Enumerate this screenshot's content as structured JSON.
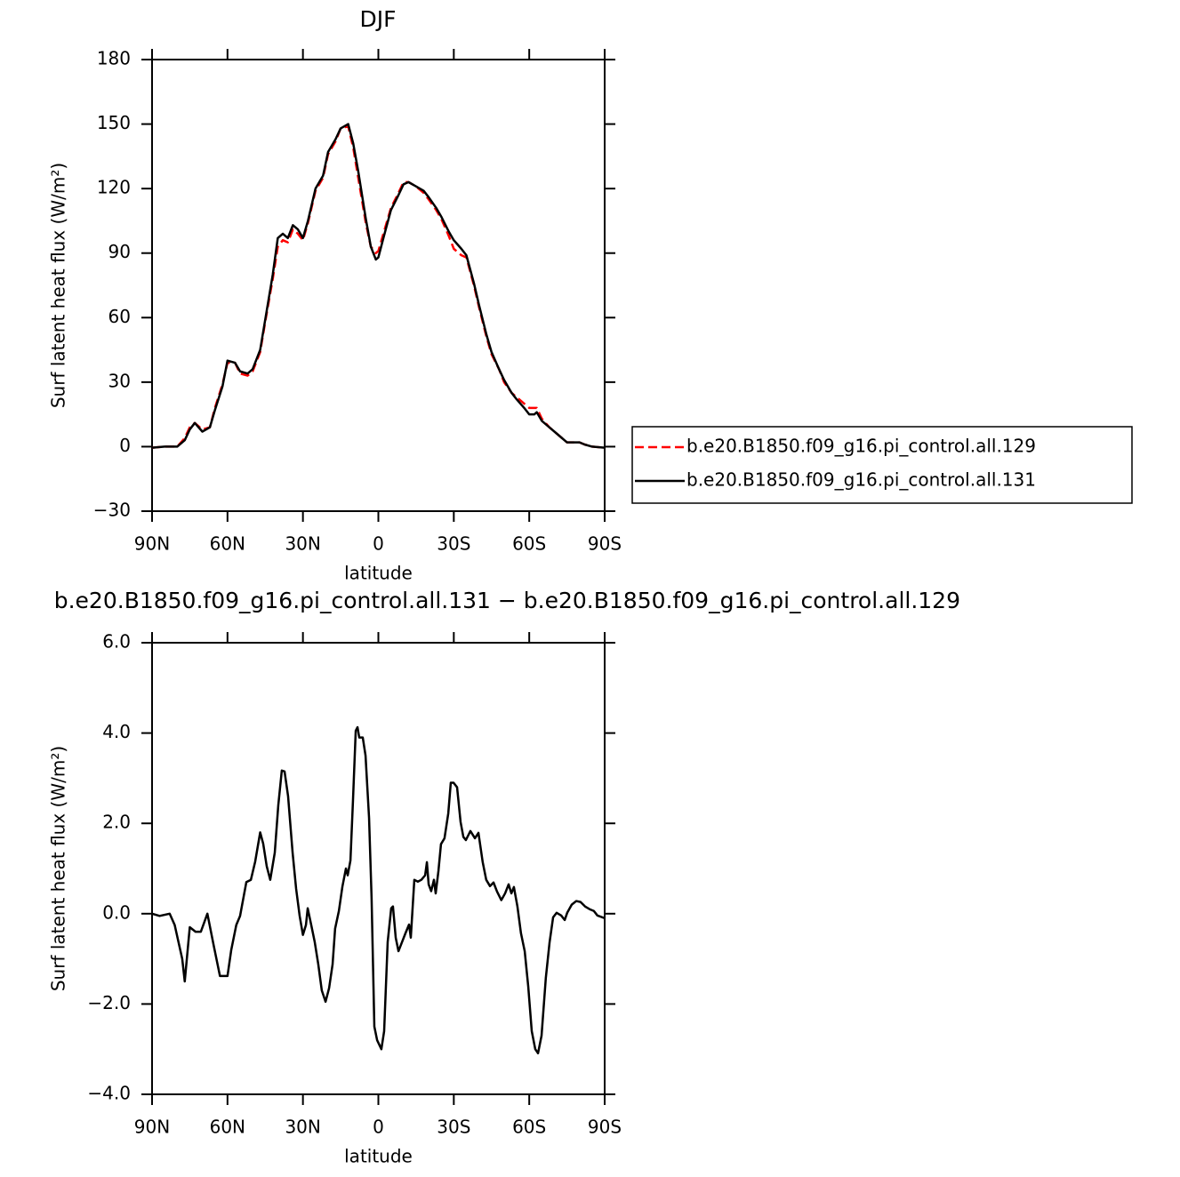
{
  "chart_data": [
    {
      "type": "line",
      "title": "DJF",
      "xlabel": "latitude",
      "ylabel": "Surf latent heat flux (W/m²)",
      "xlim": [
        90,
        -90
      ],
      "xticks": [
        {
          "value": 90,
          "label": "90N"
        },
        {
          "value": 60,
          "label": "60N"
        },
        {
          "value": 30,
          "label": "30N"
        },
        0,
        {
          "value": -30,
          "label": "30S"
        },
        {
          "value": -60,
          "label": "60S"
        },
        {
          "value": -90,
          "label": "90S"
        }
      ],
      "ylim": [
        -30,
        180
      ],
      "yticks": [
        {
          "value": -30,
          "label": "−30"
        },
        0,
        30,
        60,
        90,
        120,
        150,
        180
      ],
      "legend": "right",
      "x": [
        90,
        85,
        80,
        77,
        75,
        73,
        70,
        67,
        65,
        62,
        60,
        57,
        55,
        52,
        50,
        47,
        45,
        42,
        40,
        38,
        36,
        34,
        32,
        30,
        28,
        25,
        22,
        20,
        17,
        15,
        12,
        10,
        8,
        5,
        3,
        1,
        0,
        -2,
        -5,
        -8,
        -10,
        -12,
        -15,
        -18,
        -20,
        -23,
        -25,
        -28,
        -30,
        -33,
        -35,
        -38,
        -40,
        -43,
        -45,
        -48,
        -50,
        -53,
        -55,
        -58,
        -60,
        -62,
        -63,
        -65,
        -68,
        -70,
        -73,
        -75,
        -78,
        -80,
        -82,
        -85,
        -90
      ],
      "series": [
        {
          "name": "b.e20.B1850.f09_g16.pi_control.all.129",
          "color": "#ff0000",
          "linestyle": "dashed",
          "values": [
            -0.5,
            0,
            0,
            4,
            9,
            11,
            8,
            9,
            18,
            29,
            39,
            39,
            34,
            33,
            35,
            44,
            58,
            78,
            93,
            96,
            95,
            101,
            99,
            96,
            104,
            119,
            125,
            136,
            142,
            148,
            149,
            139,
            125,
            104,
            93,
            90,
            91,
            99,
            111,
            118,
            123,
            123,
            121,
            118,
            115,
            110,
            106,
            98,
            92,
            89,
            88,
            75,
            65,
            51,
            43,
            36,
            30,
            25,
            23,
            20,
            18,
            18,
            18,
            13,
            9,
            7,
            4,
            2,
            2,
            2,
            1,
            0,
            -0.5
          ]
        },
        {
          "name": "b.e20.B1850.f09_g16.pi_control.all.131",
          "color": "#000000",
          "linestyle": "solid",
          "values": [
            -0.5,
            0,
            0,
            3,
            8,
            11,
            7,
            9,
            17,
            28,
            40,
            39,
            35,
            34,
            36,
            45,
            59,
            80,
            97,
            99,
            97,
            103,
            101,
            97,
            105,
            120,
            126,
            137,
            143,
            148,
            150,
            141,
            128,
            106,
            93,
            87,
            88,
            97,
            110,
            117,
            122,
            123,
            121,
            119,
            116,
            111,
            107,
            100,
            96,
            92,
            89,
            76,
            66,
            52,
            44,
            36,
            31,
            25,
            22,
            18,
            15,
            15,
            16,
            12,
            9,
            7,
            4,
            2,
            2,
            2,
            1,
            0,
            -0.5
          ]
        }
      ]
    },
    {
      "type": "line",
      "title": "b.e20.B1850.f09_g16.pi_control.all.131 − b.e20.B1850.f09_g16.pi_control.all.129",
      "xlabel": "latitude",
      "ylabel": "Surf latent heat flux (W/m²)",
      "xlim": [
        90,
        -90
      ],
      "xticks": [
        {
          "value": 90,
          "label": "90N"
        },
        {
          "value": 60,
          "label": "60N"
        },
        {
          "value": 30,
          "label": "30N"
        },
        0,
        {
          "value": -30,
          "label": "30S"
        },
        {
          "value": -60,
          "label": "60S"
        },
        {
          "value": -90,
          "label": "90S"
        }
      ],
      "ylim": [
        -4,
        6
      ],
      "yticks": [
        {
          "value": -4,
          "label": "−4.0"
        },
        {
          "value": -2,
          "label": "−2.0"
        },
        {
          "value": 0,
          "label": "0.0"
        },
        {
          "value": 2,
          "label": "2.0"
        },
        {
          "value": 4,
          "label": "4.0"
        },
        {
          "value": 6,
          "label": "6.0"
        }
      ],
      "x": [
        90,
        87,
        83,
        81,
        78,
        77,
        75,
        72.7,
        70.6,
        68,
        65.5,
        63,
        60,
        58.5,
        56.5,
        55,
        52.5,
        50.7,
        49,
        47,
        45.8,
        44.4,
        43,
        41.2,
        39.8,
        38.4,
        37.3,
        35.9,
        34.1,
        32.7,
        31.3,
        30,
        28.8,
        28.1,
        26.7,
        25.3,
        23.9,
        22.5,
        21,
        19.6,
        18.2,
        17.2,
        15.7,
        14.3,
        12.9,
        12.2,
        11.1,
        10.1,
        9,
        8.3,
        7.6,
        6.2,
        5.1,
        3.7,
        2.7,
        1.6,
        0.5,
        -1.2,
        -2.3,
        -3.7,
        -5.1,
        -5.8,
        -6.9,
        -8,
        -9.4,
        -10.8,
        -12.2,
        -12.9,
        -14.3,
        -15.7,
        -17.1,
        -18.6,
        -19.3,
        -20,
        -21,
        -22.1,
        -22.8,
        -23.9,
        -24.9,
        -26.3,
        -27.8,
        -28.8,
        -29.9,
        -31.3,
        -32.7,
        -33.8,
        -34.8,
        -36.6,
        -38.4,
        -39.8,
        -41.5,
        -42.9,
        -44.4,
        -45.8,
        -47.2,
        -48.9,
        -50.4,
        -51.8,
        -52.9,
        -53.9,
        -55.3,
        -56.7,
        -58.2,
        -59.6,
        -61,
        -62.4,
        -63.5,
        -64.9,
        -66.6,
        -68.1,
        -69.5,
        -70.9,
        -72.7,
        -74.1,
        -75.1,
        -76.9,
        -78.7,
        -80.4,
        -82.2,
        -84,
        -85.7,
        -87.1,
        -90
      ],
      "color": "#000000",
      "values": [
        0,
        -0.05,
        0,
        -0.25,
        -1.0,
        -1.5,
        -0.3,
        -0.4,
        -0.4,
        0,
        -0.7,
        -1.38,
        -1.38,
        -0.8,
        -0.25,
        -0.05,
        0.7,
        0.75,
        1.15,
        1.8,
        1.55,
        1.05,
        0.75,
        1.35,
        2.4,
        3.17,
        3.15,
        2.6,
        1.35,
        0.55,
        -0.05,
        -0.47,
        -0.25,
        0.12,
        -0.25,
        -0.63,
        -1.12,
        -1.7,
        -1.95,
        -1.65,
        -1.12,
        -0.33,
        0.06,
        0.6,
        1.0,
        0.85,
        1.18,
        2.5,
        4.05,
        4.13,
        3.9,
        3.9,
        3.5,
        2.12,
        0.35,
        -2.5,
        -2.8,
        -3.0,
        -2.6,
        -0.63,
        0.12,
        0.16,
        -0.53,
        -0.83,
        -0.63,
        -0.43,
        -0.24,
        -0.53,
        0.75,
        0.71,
        0.75,
        0.85,
        1.14,
        0.65,
        0.5,
        0.75,
        0.45,
        0.95,
        1.54,
        1.67,
        2.22,
        2.9,
        2.9,
        2.8,
        2.03,
        1.7,
        1.63,
        1.83,
        1.67,
        1.79,
        1.14,
        0.75,
        0.61,
        0.69,
        0.49,
        0.3,
        0.45,
        0.65,
        0.45,
        0.59,
        0.16,
        -0.43,
        -0.83,
        -1.61,
        -2.6,
        -3.0,
        -3.09,
        -2.7,
        -1.42,
        -0.63,
        -0.08,
        0.02,
        -0.04,
        -0.14,
        0.02,
        0.2,
        0.28,
        0.26,
        0.16,
        0.1,
        0.06,
        -0.04,
        -0.1
      ]
    }
  ]
}
